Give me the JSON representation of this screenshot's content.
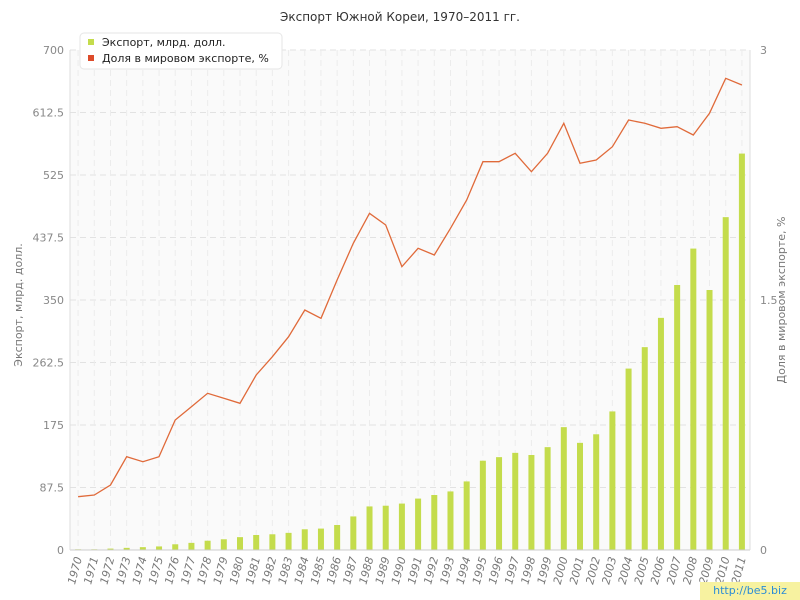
{
  "watermark": "http://be5.biz",
  "colors": {
    "bars": "#c4dc4c",
    "line": "#e06a3a",
    "legend_line": "#dd4b2a",
    "grid": "#e2e2e2"
  },
  "chart_data": {
    "type": "bar",
    "title": "Экспорт Южной Кореи, 1970–2011 гг.",
    "ylabel": "Экспорт, млрд. долл.",
    "ylabel_right": "Доля в мировом экспорте, %",
    "ylim": [
      0,
      700
    ],
    "ylim_right": [
      0,
      3
    ],
    "yticks": [
      "0",
      "87.5",
      "175",
      "262.5",
      "350",
      "437.5",
      "525",
      "612.5",
      "700"
    ],
    "yticks_right": [
      "0",
      "1.5",
      "3"
    ],
    "grid": true,
    "legend_position": "top-left",
    "categories": [
      "1970",
      "1971",
      "1972",
      "1973",
      "1974",
      "1975",
      "1976",
      "1977",
      "1978",
      "1979",
      "1980",
      "1981",
      "1982",
      "1983",
      "1984",
      "1985",
      "1986",
      "1987",
      "1988",
      "1989",
      "1990",
      "1991",
      "1992",
      "1993",
      "1994",
      "1995",
      "1996",
      "1997",
      "1998",
      "1999",
      "2000",
      "2001",
      "2002",
      "2003",
      "2004",
      "2005",
      "2006",
      "2007",
      "2008",
      "2009",
      "2010",
      "2011"
    ],
    "series": [
      {
        "name": "Экспорт, млрд. долл.",
        "type": "bar",
        "axis": "left",
        "values": [
          1,
          1,
          2,
          3,
          4,
          5,
          8,
          10,
          13,
          15,
          18,
          21,
          22,
          24,
          29,
          30,
          35,
          47,
          61,
          62,
          65,
          72,
          77,
          82,
          96,
          125,
          130,
          136,
          133,
          144,
          172,
          150,
          162,
          194,
          254,
          284,
          325,
          371,
          422,
          364,
          466,
          555
        ]
      },
      {
        "name": "Доля в мировом экспорте, %",
        "type": "line",
        "axis": "right",
        "values": [
          0.32,
          0.33,
          0.39,
          0.56,
          0.53,
          0.56,
          0.78,
          0.86,
          0.94,
          0.91,
          0.88,
          1.05,
          1.16,
          1.28,
          1.44,
          1.39,
          1.62,
          1.84,
          2.02,
          1.95,
          1.7,
          1.81,
          1.77,
          1.93,
          2.1,
          2.33,
          2.33,
          2.38,
          2.27,
          2.38,
          2.56,
          2.32,
          2.34,
          2.42,
          2.58,
          2.56,
          2.53,
          2.54,
          2.49,
          2.62,
          2.83,
          2.79
        ]
      }
    ]
  }
}
